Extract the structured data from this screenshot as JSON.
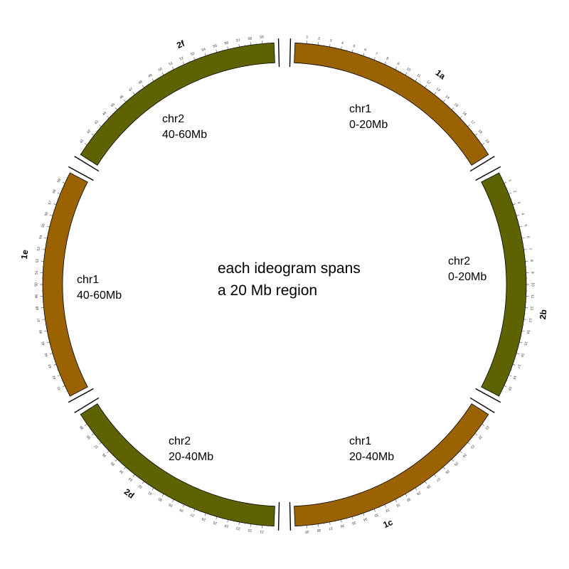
{
  "center_text": {
    "line1": "each ideogram spans",
    "line2": "a 20 Mb region"
  },
  "colors": {
    "chr1": "#9a6200",
    "chr2": "#5f6200",
    "outline": "#000000",
    "background": "#ffffff"
  },
  "ideograms": [
    {
      "id": "1a",
      "chromosome": "chr1",
      "label_chr": "chr1",
      "label_range": "0-20Mb",
      "start_mb": 0,
      "end_mb": 20,
      "ticks": [
        1,
        2,
        3,
        4,
        5,
        6,
        7,
        8,
        9,
        10,
        11,
        12,
        13,
        14,
        15,
        16,
        17,
        18,
        19
      ]
    },
    {
      "id": "2b",
      "chromosome": "chr2",
      "label_chr": "chr2",
      "label_range": "0-20Mb",
      "start_mb": 0,
      "end_mb": 20,
      "ticks": [
        1,
        2,
        3,
        4,
        5,
        6,
        7,
        8,
        9,
        10,
        11,
        12,
        13,
        14,
        15,
        16,
        17,
        18,
        19
      ]
    },
    {
      "id": "1c",
      "chromosome": "chr1",
      "label_chr": "chr1",
      "label_range": "20-40Mb",
      "start_mb": 20,
      "end_mb": 40,
      "ticks": [
        21,
        22,
        23,
        24,
        25,
        26,
        27,
        28,
        29,
        30,
        31,
        32,
        33,
        34,
        35,
        36,
        37,
        38,
        39
      ]
    },
    {
      "id": "2d",
      "chromosome": "chr2",
      "label_chr": "chr2",
      "label_range": "20-40Mb",
      "start_mb": 20,
      "end_mb": 40,
      "ticks": [
        21,
        22,
        23,
        24,
        25,
        26,
        27,
        28,
        29,
        30,
        31,
        32,
        33,
        34,
        35,
        36,
        37,
        38,
        39
      ]
    },
    {
      "id": "1e",
      "chromosome": "chr1",
      "label_chr": "chr1",
      "label_range": "40-60Mb",
      "start_mb": 40,
      "end_mb": 60,
      "ticks": [
        41,
        42,
        43,
        44,
        45,
        46,
        47,
        48,
        49,
        50,
        51,
        52,
        53,
        54,
        55,
        56,
        57,
        58,
        59
      ]
    },
    {
      "id": "2f",
      "chromosome": "chr2",
      "label_chr": "chr2",
      "label_range": "40-60Mb",
      "start_mb": 40,
      "end_mb": 60,
      "ticks": [
        41,
        42,
        43,
        44,
        45,
        46,
        47,
        48,
        49,
        50,
        51,
        52,
        53,
        54,
        55,
        56,
        57,
        58,
        59
      ]
    }
  ]
}
